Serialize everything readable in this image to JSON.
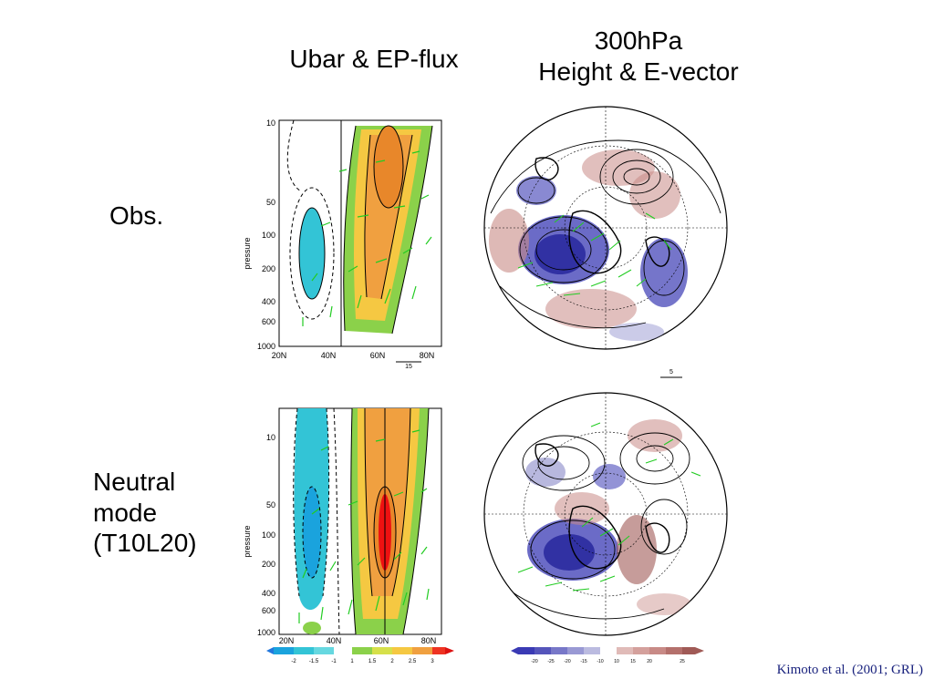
{
  "titles": {
    "left": "Ubar & EP-flux",
    "right_line1": "300hPa",
    "right_line2": "Height & E-vector"
  },
  "rows": {
    "obs": "Obs.",
    "neutral_line1": "Neutral",
    "neutral_line2": "mode",
    "neutral_line3": "(T10L20)"
  },
  "cross_section": {
    "ylabel": "pressure",
    "pressure_ticks": [
      "10",
      "50",
      "100",
      "200",
      "400",
      "600",
      "1000"
    ],
    "lat_ticks": [
      "20N",
      "40N",
      "60N",
      "80N"
    ],
    "vector_ref": "15"
  },
  "polar": {
    "vector_ref": "5"
  },
  "colorbars": {
    "ubar": [
      "-2",
      "-1.5",
      "-1",
      "1",
      "1.5",
      "2",
      "2.5",
      "3"
    ],
    "height": [
      "-20",
      "-25",
      "-20",
      "-15",
      "-10",
      "10",
      "15",
      "20",
      "25"
    ]
  },
  "citation": "Kimoto et al. (2001; GRL)"
}
